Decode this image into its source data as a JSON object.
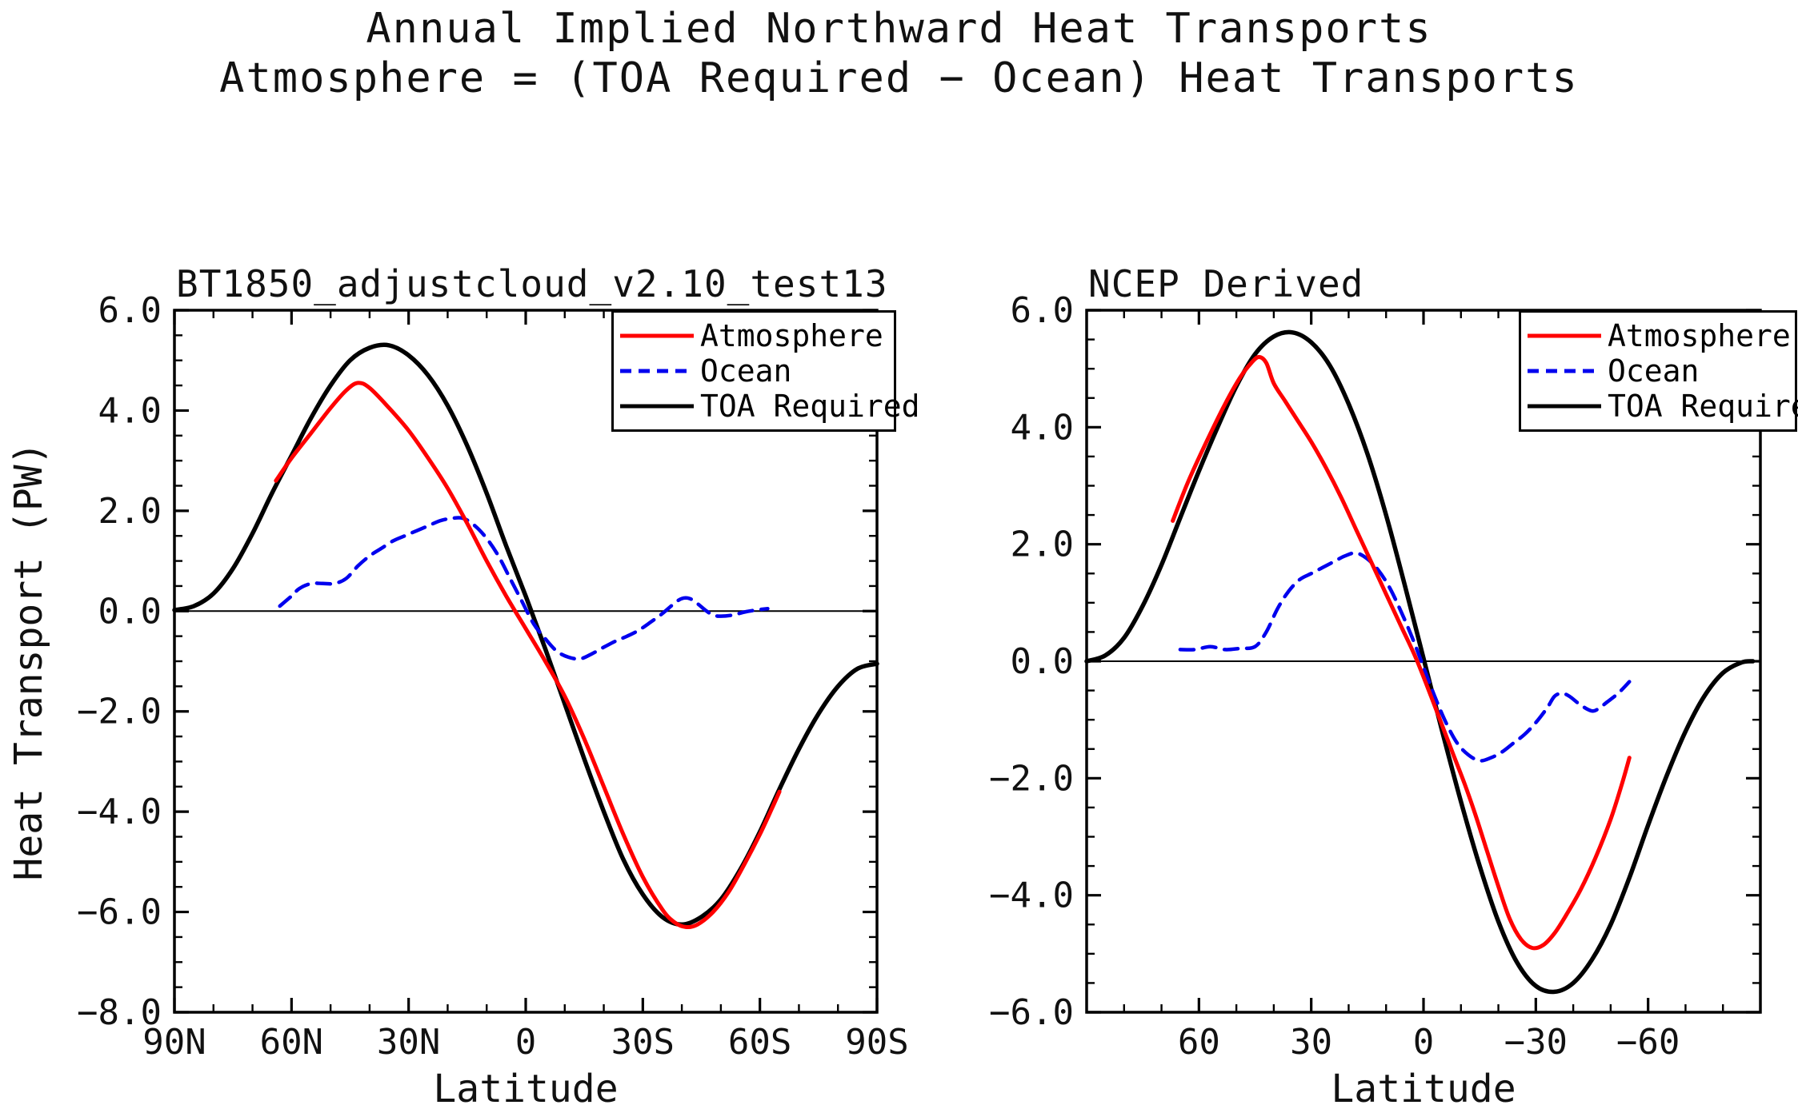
{
  "title": {
    "line1": "Annual Implied Northward Heat Transports",
    "line2": "Atmosphere = (TOA Required − Ocean) Heat Transports"
  },
  "ylabel": "Heat Transport (PW)",
  "colors": {
    "atmosphere": "#ff0000",
    "ocean": "#0000ee",
    "toa": "#000000",
    "frame": "#000000",
    "background": "#ffffff"
  },
  "legend": {
    "items": [
      {
        "label": "Atmosphere",
        "series": "atmosphere",
        "style": "solid"
      },
      {
        "label": "Ocean",
        "series": "ocean",
        "style": "dashed"
      },
      {
        "label": "TOA Required",
        "series": "toa",
        "style": "solid"
      }
    ]
  },
  "chart_data": [
    {
      "type": "line",
      "title": "BT1850_adjustcloud_v2.10_test13",
      "xlabel": "Latitude",
      "ylabel": "Heat Transport (PW)",
      "xlim": [
        90,
        -90
      ],
      "ylim": [
        -8,
        6
      ],
      "xminor": 10,
      "yminor": 0.5,
      "grid": false,
      "zero_line": true,
      "xticks": [
        {
          "v": 90,
          "label": "90N"
        },
        {
          "v": 60,
          "label": "60N"
        },
        {
          "v": 30,
          "label": "30N"
        },
        {
          "v": 0,
          "label": "0"
        },
        {
          "v": -30,
          "label": "30S"
        },
        {
          "v": -60,
          "label": "60S"
        },
        {
          "v": -90,
          "label": "90S"
        }
      ],
      "yticks": [
        {
          "v": 6,
          "label": "6.0"
        },
        {
          "v": 4,
          "label": "4.0"
        },
        {
          "v": 2,
          "label": "2.0"
        },
        {
          "v": 0,
          "label": "0.0"
        },
        {
          "v": -2,
          "label": "−2.0"
        },
        {
          "v": -4,
          "label": "−4.0"
        },
        {
          "v": -6,
          "label": "−6.0"
        },
        {
          "v": -8,
          "label": "−8.0"
        }
      ],
      "series": [
        {
          "name": "TOA Required",
          "key": "toa",
          "dash": false,
          "x": [
            90,
            85,
            80,
            75,
            70,
            65,
            60,
            55,
            50,
            45,
            40,
            35,
            30,
            25,
            20,
            15,
            10,
            5,
            0,
            -5,
            -10,
            -15,
            -20,
            -25,
            -30,
            -35,
            -40,
            -45,
            -50,
            -55,
            -60,
            -65,
            -70,
            -75,
            -80,
            -85,
            -90
          ],
          "y": [
            0.02,
            0.1,
            0.35,
            0.85,
            1.55,
            2.35,
            3.1,
            3.85,
            4.5,
            5.0,
            5.25,
            5.3,
            5.1,
            4.7,
            4.1,
            3.3,
            2.35,
            1.3,
            0.3,
            -0.75,
            -1.85,
            -2.95,
            -4.0,
            -4.95,
            -5.65,
            -6.1,
            -6.25,
            -6.1,
            -5.75,
            -5.15,
            -4.4,
            -3.55,
            -2.75,
            -2.05,
            -1.5,
            -1.15,
            -1.05
          ]
        },
        {
          "name": "Ocean",
          "key": "ocean",
          "dash": true,
          "x": [
            63,
            60,
            58,
            55,
            52,
            49,
            46,
            43,
            40,
            37,
            34,
            31,
            28,
            25,
            22,
            19,
            16,
            13,
            10,
            7,
            4,
            1,
            -2,
            -5,
            -8,
            -11,
            -14,
            -17,
            -20,
            -23,
            -26,
            -29,
            -32,
            -35,
            -38,
            -40,
            -42,
            -44,
            -46,
            -48,
            -50,
            -53,
            -56,
            -59,
            -62
          ],
          "y": [
            0.1,
            0.3,
            0.45,
            0.55,
            0.55,
            0.55,
            0.65,
            0.9,
            1.1,
            1.25,
            1.4,
            1.5,
            1.6,
            1.7,
            1.8,
            1.85,
            1.85,
            1.7,
            1.45,
            1.1,
            0.65,
            0.2,
            -0.25,
            -0.55,
            -0.8,
            -0.92,
            -0.95,
            -0.85,
            -0.72,
            -0.6,
            -0.5,
            -0.38,
            -0.22,
            -0.05,
            0.15,
            0.25,
            0.25,
            0.15,
            0.02,
            -0.08,
            -0.1,
            -0.08,
            -0.02,
            0.02,
            0.05
          ]
        },
        {
          "name": "Atmosphere",
          "key": "atmosphere",
          "dash": false,
          "x": [
            64,
            60,
            55,
            50,
            46,
            43,
            40,
            35,
            30,
            25,
            20,
            15,
            10,
            5,
            0,
            -5,
            -10,
            -15,
            -20,
            -25,
            -30,
            -35,
            -38,
            -41,
            -44,
            -48,
            -52,
            -56,
            -60,
            -63,
            -65
          ],
          "y": [
            2.6,
            3.05,
            3.55,
            4.05,
            4.4,
            4.55,
            4.45,
            4.05,
            3.6,
            3.05,
            2.45,
            1.75,
            1.0,
            0.3,
            -0.35,
            -1.0,
            -1.7,
            -2.55,
            -3.5,
            -4.45,
            -5.3,
            -5.95,
            -6.2,
            -6.3,
            -6.25,
            -6.0,
            -5.6,
            -5.05,
            -4.45,
            -3.95,
            -3.6
          ]
        }
      ]
    },
    {
      "type": "line",
      "title": "NCEP Derived",
      "xlabel": "Latitude",
      "ylabel": "Heat Transport (PW)",
      "xlim": [
        90,
        -90
      ],
      "ylim": [
        -6,
        6
      ],
      "xminor": 10,
      "yminor": 0.5,
      "grid": false,
      "zero_line": true,
      "xticks": [
        {
          "v": 60,
          "label": "60"
        },
        {
          "v": 30,
          "label": "30"
        },
        {
          "v": 0,
          "label": "0"
        },
        {
          "v": -30,
          "label": "−30"
        },
        {
          "v": -60,
          "label": "−60"
        }
      ],
      "yticks": [
        {
          "v": 6,
          "label": "6.0"
        },
        {
          "v": 4,
          "label": "4.0"
        },
        {
          "v": 2,
          "label": "2.0"
        },
        {
          "v": 0,
          "label": "0.0"
        },
        {
          "v": -2,
          "label": "−2.0"
        },
        {
          "v": -4,
          "label": "−4.0"
        },
        {
          "v": -6,
          "label": "−6.0"
        }
      ],
      "series": [
        {
          "name": "TOA Required",
          "key": "toa",
          "dash": false,
          "x": [
            90,
            85,
            80,
            75,
            70,
            65,
            60,
            55,
            50,
            45,
            40,
            35,
            30,
            25,
            20,
            15,
            10,
            5,
            0,
            -5,
            -10,
            -15,
            -20,
            -25,
            -30,
            -35,
            -40,
            -45,
            -50,
            -55,
            -60,
            -65,
            -70,
            -75,
            -80,
            -85,
            -88
          ],
          "y": [
            0.0,
            0.1,
            0.4,
            0.95,
            1.65,
            2.45,
            3.25,
            4.0,
            4.7,
            5.25,
            5.55,
            5.62,
            5.45,
            5.05,
            4.4,
            3.55,
            2.5,
            1.3,
            0.05,
            -1.2,
            -2.4,
            -3.5,
            -4.45,
            -5.15,
            -5.55,
            -5.65,
            -5.5,
            -5.1,
            -4.5,
            -3.7,
            -2.8,
            -1.95,
            -1.2,
            -0.6,
            -0.2,
            -0.02,
            0.0
          ]
        },
        {
          "name": "Ocean",
          "key": "ocean",
          "dash": true,
          "x": [
            65,
            61,
            57,
            53,
            49,
            45,
            42,
            39,
            36,
            33,
            30,
            27,
            24,
            21,
            18,
            15,
            12,
            9,
            6,
            3,
            0,
            -3,
            -6,
            -9,
            -12,
            -15,
            -18,
            -21,
            -24,
            -27,
            -30,
            -33,
            -35,
            -37,
            -39,
            -42,
            -45,
            -47,
            -49,
            -52,
            -55
          ],
          "y": [
            0.2,
            0.2,
            0.25,
            0.2,
            0.22,
            0.25,
            0.5,
            0.9,
            1.2,
            1.4,
            1.5,
            1.6,
            1.7,
            1.8,
            1.85,
            1.75,
            1.55,
            1.25,
            0.85,
            0.4,
            -0.1,
            -0.6,
            -1.05,
            -1.4,
            -1.6,
            -1.7,
            -1.65,
            -1.55,
            -1.4,
            -1.25,
            -1.05,
            -0.8,
            -0.6,
            -0.55,
            -0.6,
            -0.75,
            -0.85,
            -0.8,
            -0.7,
            -0.55,
            -0.35
          ]
        },
        {
          "name": "Atmosphere",
          "key": "atmosphere",
          "dash": false,
          "x": [
            67,
            63,
            58,
            53,
            49,
            46,
            44,
            42,
            40,
            37,
            34,
            30,
            26,
            22,
            18,
            14,
            10,
            6,
            2,
            -2,
            -5,
            -8,
            -11,
            -14,
            -17,
            -20,
            -23,
            -26,
            -29,
            -32,
            -35,
            -38,
            -42,
            -46,
            -50,
            -53,
            -55
          ],
          "y": [
            2.4,
            3.05,
            3.75,
            4.4,
            4.85,
            5.1,
            5.2,
            5.1,
            4.75,
            4.45,
            4.15,
            3.75,
            3.3,
            2.8,
            2.25,
            1.7,
            1.15,
            0.6,
            0.05,
            -0.6,
            -1.1,
            -1.6,
            -2.1,
            -2.65,
            -3.25,
            -3.85,
            -4.4,
            -4.75,
            -4.9,
            -4.85,
            -4.65,
            -4.35,
            -3.9,
            -3.35,
            -2.7,
            -2.1,
            -1.65
          ]
        }
      ]
    }
  ]
}
